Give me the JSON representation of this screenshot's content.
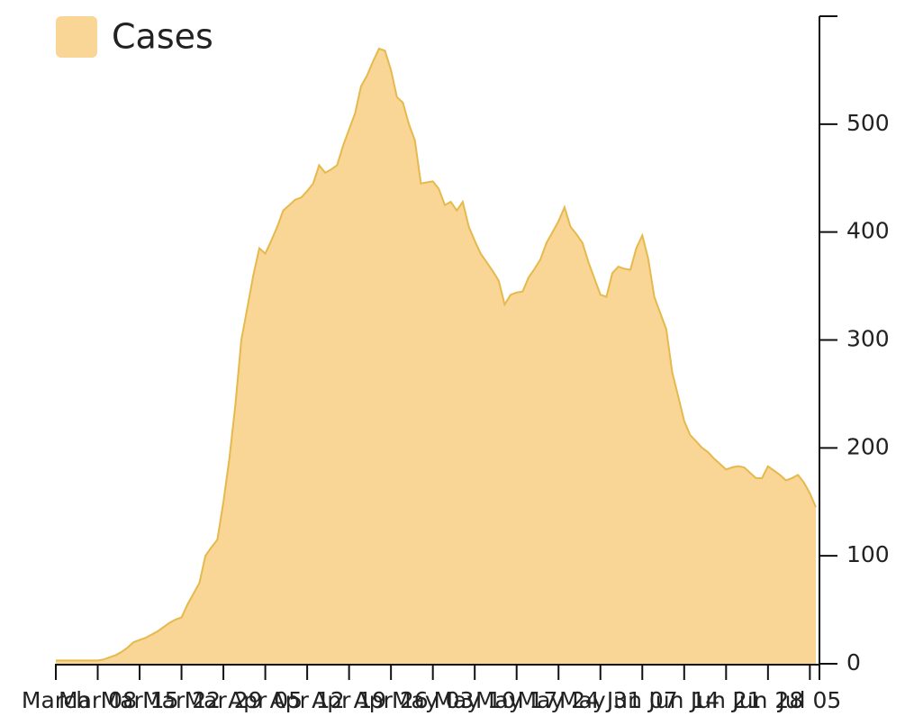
{
  "chart_data": {
    "type": "area",
    "categories": [
      "March",
      null,
      null,
      null,
      null,
      null,
      null,
      "Mar 08",
      null,
      null,
      null,
      null,
      null,
      null,
      "Mar 15",
      null,
      null,
      null,
      null,
      null,
      null,
      "Mar 22",
      null,
      null,
      null,
      null,
      null,
      null,
      "Mar 29",
      null,
      null,
      null,
      null,
      null,
      null,
      "Apr 05",
      null,
      null,
      null,
      null,
      null,
      null,
      "Apr 12",
      null,
      null,
      null,
      null,
      null,
      null,
      "Apr 19",
      null,
      null,
      null,
      null,
      null,
      null,
      "Apr 26",
      null,
      null,
      null,
      null,
      null,
      null,
      "May 03",
      null,
      null,
      null,
      null,
      null,
      null,
      "May 10",
      null,
      null,
      null,
      null,
      null,
      null,
      "May 17",
      null,
      null,
      null,
      null,
      null,
      null,
      "May 24",
      null,
      null,
      null,
      null,
      null,
      null,
      "May 31",
      null,
      null,
      null,
      null,
      null,
      null,
      "Jun 07",
      null,
      null,
      null,
      null,
      null,
      null,
      "Jun 14",
      null,
      null,
      null,
      null,
      null,
      null,
      "Jun 21",
      null,
      null,
      null,
      null,
      null,
      null,
      "Jun 28",
      null,
      null,
      null,
      null,
      null,
      null,
      "Jul 05",
      null
    ],
    "series": [
      {
        "name": "Cases",
        "color": "#f9d596",
        "line_color": "#e6b94c",
        "values": [
          3,
          3,
          3,
          3,
          3,
          3,
          3,
          3,
          4,
          6,
          8,
          11,
          15,
          20,
          22,
          24,
          27,
          30,
          34,
          38,
          41,
          43,
          55,
          65,
          75,
          100,
          108,
          115,
          150,
          190,
          240,
          300,
          330,
          360,
          385,
          380,
          392,
          405,
          420,
          425,
          430,
          432,
          438,
          445,
          462,
          455,
          458,
          462,
          480,
          495,
          510,
          535,
          545,
          558,
          570,
          568,
          550,
          525,
          520,
          500,
          485,
          445,
          446,
          447,
          440,
          425,
          428,
          420,
          428,
          405,
          392,
          380,
          372,
          364,
          355,
          333,
          342,
          344,
          345,
          358,
          366,
          375,
          390,
          400,
          410,
          423,
          405,
          398,
          390,
          372,
          357,
          342,
          340,
          362,
          368,
          366,
          365,
          385,
          397,
          375,
          340,
          325,
          310,
          270,
          248,
          225,
          212,
          206,
          200,
          196,
          190,
          185,
          180,
          182,
          183,
          182,
          177,
          172,
          172,
          183,
          179,
          175,
          170,
          172,
          175,
          168,
          158,
          145
        ]
      }
    ],
    "ylim": [
      0,
      600
    ],
    "yticks": [
      0,
      100,
      200,
      300,
      400,
      500
    ],
    "legend": "top-left"
  }
}
